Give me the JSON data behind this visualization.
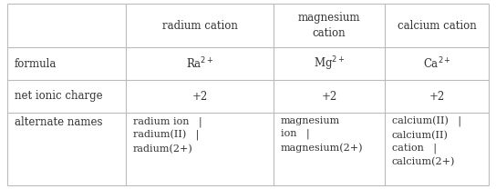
{
  "col_headers": [
    "radium cation",
    "magnesium\ncation",
    "calcium cation"
  ],
  "row_headers": [
    "formula",
    "net ionic charge",
    "alternate names"
  ],
  "formulas": [
    "Ra$^{2+}$",
    "Mg$^{2+}$",
    "Ca$^{2+}$"
  ],
  "charges": [
    "+2",
    "+2",
    "+2"
  ],
  "alt_names_col1": "radium ion   |\nradium(II)   |\nradium(2+)",
  "alt_names_col2": "magnesium\nion   |\nmagnesium(2+)",
  "alt_names_col3": "calcium(II)   |\ncalcium(II)\ncation   |\ncalcium(2+)",
  "bg_color": "#ffffff",
  "text_color": "#333333",
  "grid_color": "#bbbbbb",
  "font_size": 8.5
}
